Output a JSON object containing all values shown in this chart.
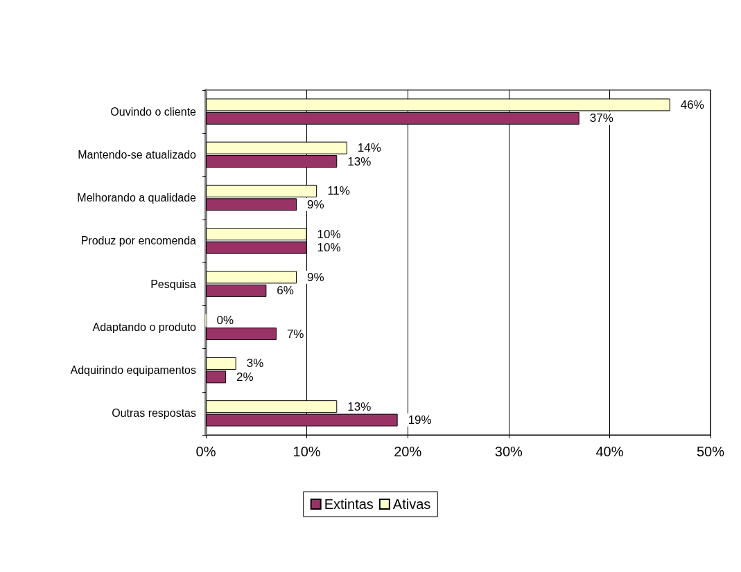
{
  "chart_data": {
    "type": "bar",
    "orientation": "horizontal",
    "categories": [
      "Ouvindo o cliente",
      "Mantendo-se atualizado",
      "Melhorando a qualidade",
      "Produz por encomenda",
      "Pesquisa",
      "Adaptando o produto",
      "Adquirindo equipamentos",
      "Outras respostas"
    ],
    "series": [
      {
        "name": "Extintas",
        "color": "#993366",
        "values": [
          37,
          13,
          9,
          10,
          6,
          7,
          2,
          19
        ],
        "value_labels": [
          "37%",
          "13%",
          "9%",
          "10%",
          "6%",
          "7%",
          "2%",
          "19%"
        ]
      },
      {
        "name": "Ativas",
        "color": "#ffffcc",
        "values": [
          46,
          14,
          11,
          10,
          9,
          0,
          3,
          13
        ],
        "value_labels": [
          "46%",
          "14%",
          "11%",
          "10%",
          "9%",
          "0%",
          "3%",
          "13%"
        ]
      }
    ],
    "xlim": [
      0,
      50
    ],
    "xticks": [
      {
        "value": 0,
        "label": "0%"
      },
      {
        "value": 10,
        "label": "10%"
      },
      {
        "value": 20,
        "label": "20%"
      },
      {
        "value": 30,
        "label": "30%"
      },
      {
        "value": 40,
        "label": "40%"
      },
      {
        "value": 50,
        "label": "50%"
      }
    ],
    "grid": "x",
    "legend": "bottom"
  }
}
